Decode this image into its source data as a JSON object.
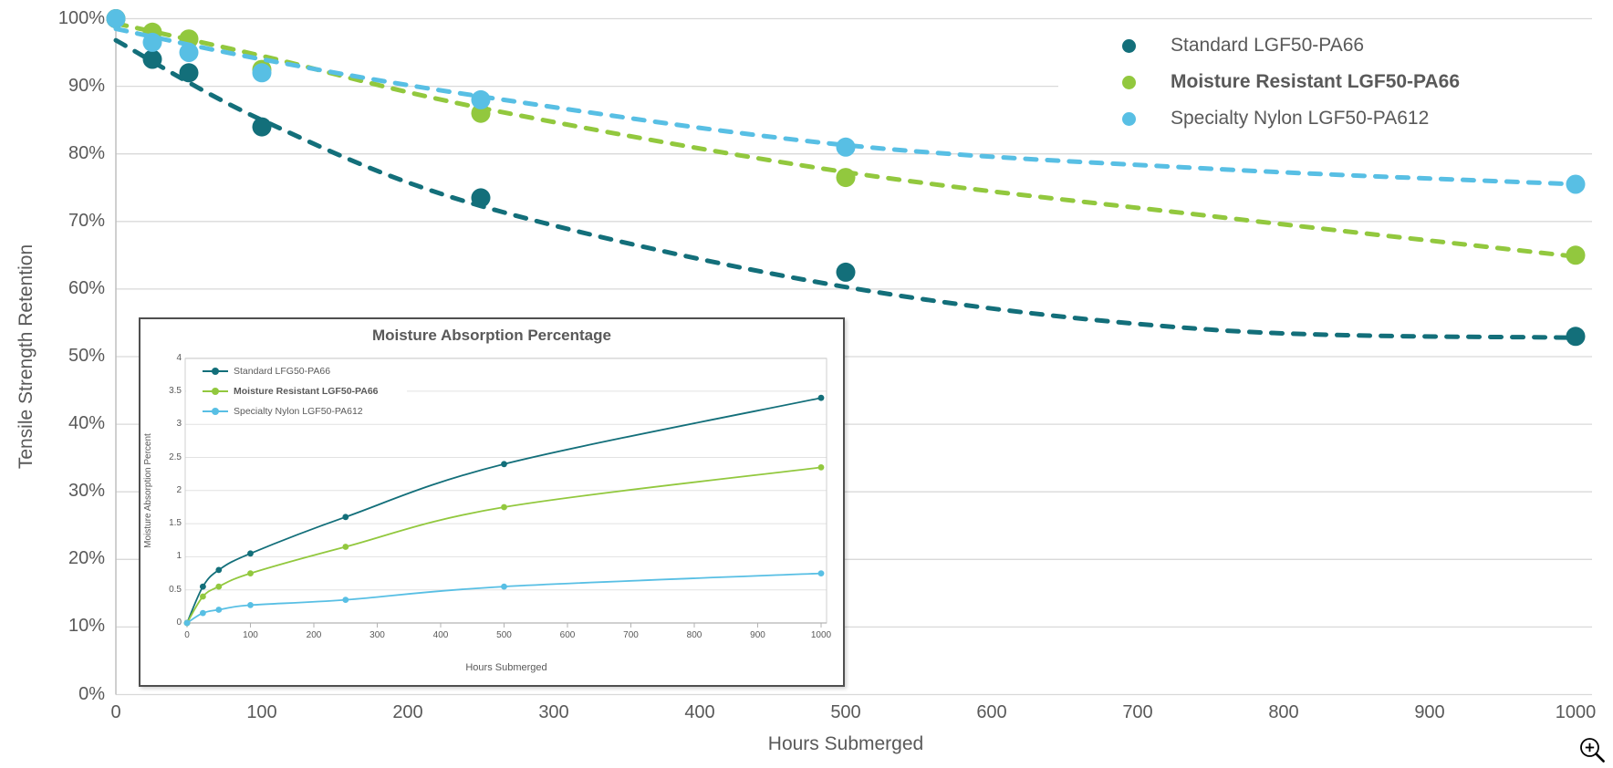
{
  "colors": {
    "standard": "#136f7a",
    "moisture_resistant": "#92c83e",
    "specialty": "#58bfe4",
    "text": "#595959",
    "grid": "#d9d9d9",
    "axis": "#bfbfbf"
  },
  "chart_data": [
    {
      "type": "scatter",
      "title": "",
      "xlabel": "Hours Submerged",
      "ylabel": "Tensile Strength Retention",
      "xlim": [
        0,
        1000
      ],
      "ylim": [
        0,
        100
      ],
      "grid": true,
      "legend_position": "top-right",
      "x_ticks": [
        0,
        100,
        200,
        300,
        400,
        500,
        600,
        700,
        800,
        900,
        1000
      ],
      "y_tick_labels": [
        "100%",
        "90%",
        "80%",
        "70%",
        "60%",
        "50%",
        "40%",
        "30%",
        "20%",
        "10%",
        "0%"
      ],
      "series": [
        {
          "name": "Standard LGF50-PA66",
          "color_key": "standard",
          "bold": false,
          "marker": "circle",
          "x": [
            0,
            25,
            50,
            100,
            250,
            500,
            1000
          ],
          "y": [
            100,
            94,
            92,
            84,
            73.5,
            62.5,
            53
          ],
          "trendline": {
            "style": "dashed",
            "x": [
              0,
              100,
              250,
              500,
              750,
              1000
            ],
            "y": [
              96.8,
              85,
              72.3,
              60.3,
              54,
              52.8
            ]
          }
        },
        {
          "name": "Moisture Resistant LGF50-PA66",
          "color_key": "moisture_resistant",
          "bold": true,
          "marker": "circle",
          "x": [
            0,
            25,
            50,
            100,
            250,
            500,
            1000
          ],
          "y": [
            100,
            98,
            97,
            92.5,
            86,
            76.5,
            65
          ],
          "trendline": {
            "style": "dashed",
            "x": [
              0,
              100,
              250,
              500,
              750,
              1000
            ],
            "y": [
              99.3,
              94.5,
              86.8,
              77.3,
              70.8,
              64.8
            ]
          }
        },
        {
          "name": "Specialty Nylon LGF50-PA612",
          "color_key": "specialty",
          "bold": false,
          "marker": "circle",
          "x": [
            0,
            25,
            50,
            100,
            250,
            500,
            1000
          ],
          "y": [
            100,
            96.5,
            95,
            92,
            88,
            81,
            75.5
          ],
          "trendline": {
            "style": "dashed",
            "x": [
              0,
              100,
              250,
              500,
              750,
              1000
            ],
            "y": [
              98.5,
              94,
              88.5,
              81.3,
              77.8,
              75.5
            ]
          }
        }
      ]
    },
    {
      "type": "line",
      "title": "Moisture Absorption Percentage",
      "xlabel": "Hours Submerged",
      "ylabel": "Moisture Absorption Percent",
      "xlim": [
        0,
        1000
      ],
      "ylim": [
        0,
        4
      ],
      "grid": true,
      "legend_position": "top-left",
      "x_ticks": [
        0,
        100,
        200,
        300,
        400,
        500,
        600,
        700,
        800,
        900,
        1000
      ],
      "y_ticks": [
        4,
        3.5,
        3,
        2.5,
        2,
        1.5,
        1,
        0.5,
        0
      ],
      "series": [
        {
          "name": "Standard LFG50-PA66",
          "color_key": "standard",
          "bold": false,
          "x": [
            0,
            25,
            50,
            100,
            250,
            500,
            1000
          ],
          "y": [
            0,
            0.55,
            0.8,
            1.05,
            1.6,
            2.4,
            3.4
          ]
        },
        {
          "name": "Moisture Resistant LGF50-PA66",
          "color_key": "moisture_resistant",
          "bold": true,
          "x": [
            0,
            25,
            50,
            100,
            250,
            500,
            1000
          ],
          "y": [
            0,
            0.4,
            0.55,
            0.75,
            1.15,
            1.75,
            2.35
          ]
        },
        {
          "name": "Specialty Nylon LGF50-PA612",
          "color_key": "specialty",
          "bold": false,
          "x": [
            0,
            25,
            50,
            100,
            250,
            500,
            1000
          ],
          "y": [
            0,
            0.15,
            0.2,
            0.27,
            0.35,
            0.55,
            0.75
          ]
        }
      ]
    }
  ],
  "icons": {
    "zoom_in": "magnifier-plus-icon"
  }
}
